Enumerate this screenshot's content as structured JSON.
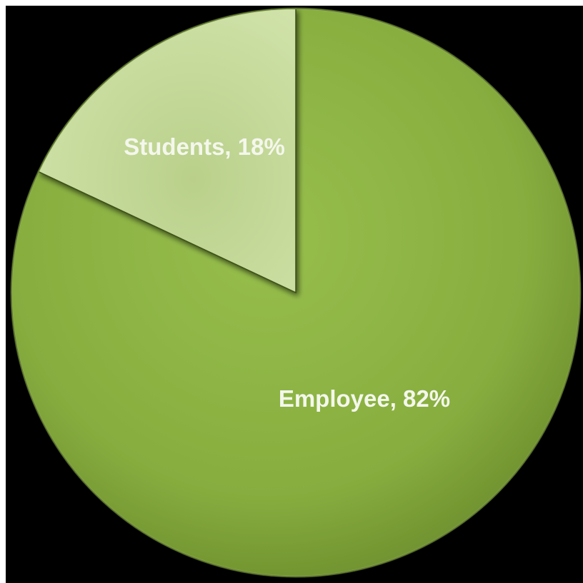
{
  "chart_data": {
    "type": "pie",
    "slices": [
      {
        "label": "Employee",
        "value": 82,
        "display": "Employee, 82%"
      },
      {
        "label": "Students",
        "value": 18,
        "display": "Students, 18%"
      }
    ],
    "start_angle": "12 o'clock",
    "direction": "clockwise",
    "legend": "none",
    "colors": {
      "background": "#000000",
      "Employee": "#8db545",
      "Students": "#c4d89a",
      "label_text": "#f4f7ec"
    }
  }
}
